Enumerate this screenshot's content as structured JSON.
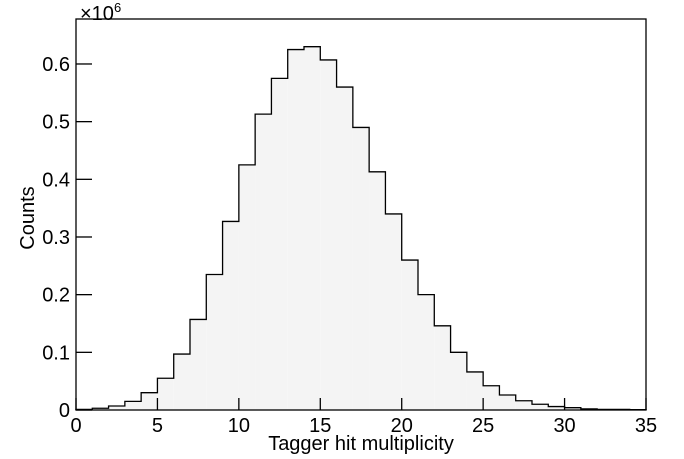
{
  "chart_data": {
    "type": "histogram",
    "x_label": "Tagger hit multiplicity",
    "y_label": "Counts",
    "y_multiplier": "×10",
    "y_multiplier_exponent": "6",
    "bins": [
      0,
      1,
      2,
      3,
      4,
      5,
      6,
      7,
      8,
      9,
      10,
      11,
      12,
      13,
      14,
      15,
      16,
      17,
      18,
      19,
      20,
      21,
      22,
      23,
      24,
      25,
      26,
      27,
      28,
      29,
      30,
      31,
      32,
      33,
      34,
      35
    ],
    "counts": [
      0.001,
      0.003,
      0.007,
      0.015,
      0.03,
      0.055,
      0.097,
      0.157,
      0.235,
      0.327,
      0.425,
      0.513,
      0.575,
      0.625,
      0.63,
      0.607,
      0.56,
      0.49,
      0.413,
      0.34,
      0.26,
      0.2,
      0.146,
      0.1,
      0.066,
      0.042,
      0.026,
      0.016,
      0.01,
      0.006,
      0.004,
      0.002,
      0.001,
      0.001,
      0.0005
    ],
    "color": "#f4f4f4",
    "xlim": [
      0,
      35
    ],
    "xticks": [
      0,
      5,
      10,
      15,
      20,
      25,
      30,
      35
    ],
    "ylim": [
      0,
      0.678
    ],
    "yticks": [
      0,
      0.1,
      0.2,
      0.3,
      0.4,
      0.5,
      0.6
    ]
  }
}
